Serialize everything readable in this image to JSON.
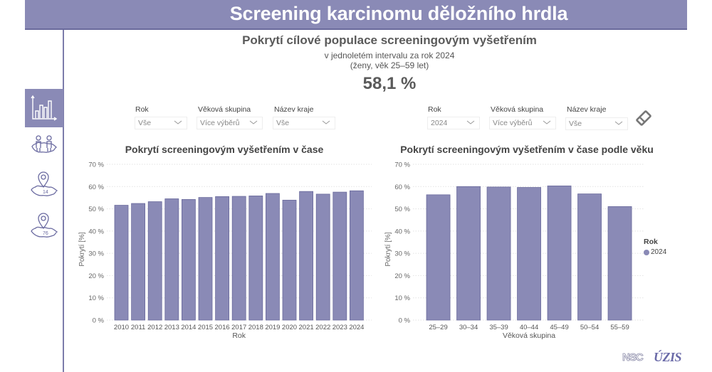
{
  "header": {
    "title": "Screening karcinomu děložního hrdla"
  },
  "sidebar": {
    "items": [
      {
        "id": "trend",
        "icon": "bar-chart-icon",
        "active": true
      },
      {
        "id": "regions-population",
        "icon": "people-map-icon",
        "active": false
      },
      {
        "id": "regions-14",
        "icon": "map-pin-icon",
        "badge": "14",
        "active": false
      },
      {
        "id": "districts-76",
        "icon": "map-pin-icon",
        "badge": "76",
        "active": false
      }
    ]
  },
  "kpi": {
    "title": "Pokrytí cílové populace screeningovým vyšetřením",
    "subtitle1": "v jednoletém intervalu za rok 2024",
    "subtitle2": "(ženy, věk 25–59 let)",
    "value": "58,1 %"
  },
  "filters_left": {
    "year": {
      "label": "Rok",
      "value": "Vše"
    },
    "age_group": {
      "label": "Věková skupina",
      "value": "Více výběrů"
    },
    "region": {
      "label": "Název kraje",
      "value": "Vše"
    }
  },
  "filters_right": {
    "year": {
      "label": "Rok",
      "value": "2024"
    },
    "age_group": {
      "label": "Věková skupina",
      "value": "Více výběrů"
    },
    "region": {
      "label": "Název kraje",
      "value": "Vše"
    },
    "clear_icon": "eraser-icon"
  },
  "colors": {
    "accent": "#8a8ab6",
    "bar_fill": "#8a8ab6",
    "bar_stroke": "#6a6a9c",
    "text": "#555555"
  },
  "legend": {
    "title": "Rok",
    "items": [
      {
        "label": "2024",
        "color": "#8a8ab6"
      }
    ]
  },
  "logos": {
    "nsc": "NSC",
    "uzis": "ÚZIS"
  },
  "chart_data": [
    {
      "type": "bar",
      "title": "Pokrytí screeningovým vyšetřením v čase",
      "xlabel": "Rok",
      "ylabel": "Pokrytí [%]",
      "ylim": [
        0,
        70
      ],
      "yticks": [
        "0 %",
        "10 %",
        "20 %",
        "30 %",
        "40 %",
        "50 %",
        "60 %",
        "70 %"
      ],
      "grid": true,
      "categories": [
        "2010",
        "2011",
        "2012",
        "2013",
        "2014",
        "2015",
        "2016",
        "2017",
        "2018",
        "2019",
        "2020",
        "2021",
        "2022",
        "2023",
        "2024"
      ],
      "values": [
        51.6,
        52.4,
        53.2,
        54.5,
        54.2,
        55.1,
        55.5,
        55.6,
        55.8,
        56.9,
        53.9,
        57.8,
        56.6,
        57.5,
        58.1
      ]
    },
    {
      "type": "bar",
      "title": "Pokrytí screeningovým vyšetřením v čase podle věku",
      "xlabel": "Věková skupina",
      "ylabel": "Pokrytí [%]",
      "ylim": [
        0,
        70
      ],
      "yticks": [
        "0 %",
        "10 %",
        "20 %",
        "30 %",
        "40 %",
        "50 %",
        "60 %",
        "70 %"
      ],
      "grid": true,
      "legend_position": "right",
      "categories": [
        "25–29",
        "30–34",
        "35–39",
        "40–44",
        "45–49",
        "50–54",
        "55–59"
      ],
      "series": [
        {
          "name": "2024",
          "values": [
            56.3,
            60.0,
            59.8,
            59.6,
            60.3,
            56.7,
            51.0
          ]
        }
      ]
    }
  ]
}
